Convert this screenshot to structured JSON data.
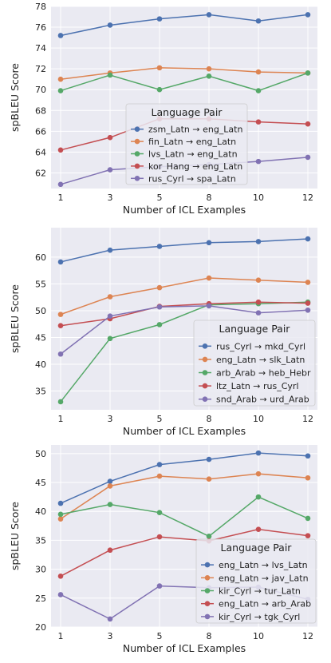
{
  "colors": {
    "plot_background": "#eaeaf2",
    "gridline": "#ffffff",
    "series": [
      "#4c72b0",
      "#dd8452",
      "#55a868",
      "#c44e52",
      "#8172b3"
    ]
  },
  "chart_data": [
    {
      "type": "line",
      "title": "",
      "xlabel": "Number of ICL Examples",
      "ylabel": "spBLEU Score",
      "categories": [
        "1",
        "3",
        "5",
        "8",
        "10",
        "12"
      ],
      "ylim": [
        60.5,
        78
      ],
      "yticks": [
        62,
        64,
        66,
        68,
        70,
        72,
        74,
        76,
        78
      ],
      "grid": true,
      "legend": {
        "title": "Language Pair",
        "placement": "center"
      },
      "series": [
        {
          "name": "zsm_Latn → eng_Latn",
          "values": [
            75.2,
            76.2,
            76.8,
            77.2,
            76.6,
            77.2
          ]
        },
        {
          "name": "fin_Latn → eng_Latn",
          "values": [
            71.0,
            71.6,
            72.1,
            72.0,
            71.7,
            71.6
          ]
        },
        {
          "name": "lvs_Latn → eng_Latn",
          "values": [
            69.9,
            71.4,
            70.0,
            71.3,
            69.9,
            71.6
          ]
        },
        {
          "name": "kor_Hang → eng_Latn",
          "values": [
            64.2,
            65.4,
            67.2,
            67.2,
            66.9,
            66.7
          ]
        },
        {
          "name": "rus_Cyrl → spa_Latn",
          "values": [
            60.9,
            62.3,
            62.6,
            62.8,
            63.1,
            63.5
          ]
        }
      ]
    },
    {
      "type": "line",
      "title": "",
      "xlabel": "Number of ICL Examples",
      "ylabel": "spBLEU Score",
      "categories": [
        "1",
        "3",
        "5",
        "8",
        "10",
        "12"
      ],
      "ylim": [
        31.5,
        65.5
      ],
      "yticks": [
        35,
        40,
        45,
        50,
        55,
        60
      ],
      "grid": true,
      "legend": {
        "title": "Language Pair",
        "placement": "lower-right"
      },
      "series": [
        {
          "name": "rus_Cyrl → mkd_Cyrl",
          "values": [
            59.1,
            61.3,
            62.0,
            62.7,
            62.9,
            63.4
          ]
        },
        {
          "name": "eng_Latn → slk_Latn",
          "values": [
            49.3,
            52.6,
            54.3,
            56.1,
            55.7,
            55.3
          ]
        },
        {
          "name": "arb_Arab → heb_Hebr",
          "values": [
            33.0,
            44.8,
            47.4,
            51.1,
            51.3,
            51.6
          ]
        },
        {
          "name": "ltz_Latn → rus_Cyrl",
          "values": [
            47.2,
            48.5,
            50.8,
            51.3,
            51.6,
            51.4
          ]
        },
        {
          "name": "snd_Arab → urd_Arab",
          "values": [
            41.9,
            49.0,
            50.7,
            50.9,
            49.6,
            50.1
          ]
        }
      ]
    },
    {
      "type": "line",
      "title": "",
      "xlabel": "Number of ICL Examples",
      "ylabel": "spBLEU Score",
      "categories": [
        "1",
        "3",
        "5",
        "8",
        "10",
        "12"
      ],
      "ylim": [
        20,
        51.5
      ],
      "yticks": [
        20,
        25,
        30,
        35,
        40,
        45,
        50
      ],
      "grid": true,
      "legend": {
        "title": "Language Pair",
        "placement": "lower-right"
      },
      "series": [
        {
          "name": "eng_Latn → lvs_Latn",
          "values": [
            41.4,
            45.2,
            48.1,
            49.0,
            50.1,
            49.6
          ]
        },
        {
          "name": "eng_Latn → jav_Latn",
          "values": [
            38.7,
            44.4,
            46.1,
            45.6,
            46.5,
            45.8
          ]
        },
        {
          "name": "kir_Cyrl → tur_Latn",
          "values": [
            39.5,
            41.2,
            39.8,
            35.7,
            42.5,
            38.8
          ]
        },
        {
          "name": "eng_Latn → arb_Arab",
          "values": [
            28.8,
            33.3,
            35.6,
            34.9,
            36.9,
            35.8
          ]
        },
        {
          "name": "kir_Cyrl → tgk_Cyrl",
          "values": [
            25.6,
            21.4,
            27.1,
            26.8,
            26.9,
            24.8
          ]
        }
      ]
    }
  ]
}
